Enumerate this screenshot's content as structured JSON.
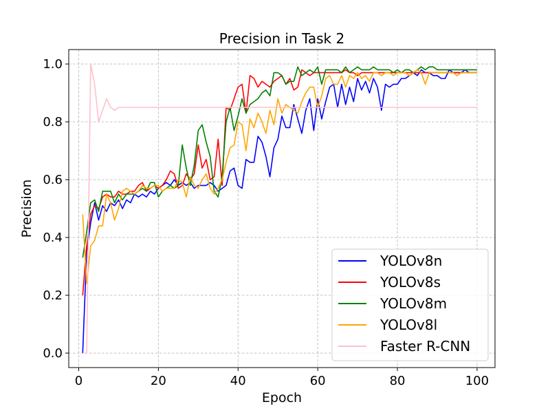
{
  "chart_data": {
    "type": "line",
    "title": "Precision in Task 2",
    "xlabel": "Epoch",
    "ylabel": "Precision",
    "xlim": [
      -2.5,
      104.5
    ],
    "ylim": [
      -0.05,
      1.05
    ],
    "xticks": [
      0,
      20,
      40,
      60,
      80,
      100
    ],
    "yticks": [
      0.0,
      0.2,
      0.4,
      0.6,
      0.8,
      1.0
    ],
    "xtick_labels": [
      "0",
      "20",
      "40",
      "60",
      "80",
      "100"
    ],
    "ytick_labels": [
      "0.0",
      "0.2",
      "0.4",
      "0.6",
      "0.8",
      "1.0"
    ],
    "grid": true,
    "legend_position": "lower-right",
    "series": [
      {
        "name": "YOLOv8n",
        "color": "#0000ff",
        "x": [
          1,
          2,
          3,
          4,
          5,
          6,
          7,
          8,
          9,
          10,
          11,
          12,
          13,
          14,
          15,
          16,
          17,
          18,
          19,
          20,
          21,
          22,
          23,
          24,
          25,
          26,
          27,
          28,
          29,
          30,
          31,
          32,
          33,
          34,
          35,
          36,
          37,
          38,
          39,
          40,
          41,
          42,
          43,
          44,
          45,
          46,
          47,
          48,
          49,
          50,
          51,
          52,
          53,
          54,
          55,
          56,
          57,
          58,
          59,
          60,
          61,
          62,
          63,
          64,
          65,
          66,
          67,
          68,
          69,
          70,
          71,
          72,
          73,
          74,
          75,
          76,
          77,
          78,
          79,
          80,
          81,
          82,
          83,
          84,
          85,
          86,
          87,
          88,
          89,
          90,
          91,
          92,
          93,
          94,
          95,
          96,
          97,
          98,
          99,
          100
        ],
        "values": [
          0.0,
          0.35,
          0.45,
          0.52,
          0.46,
          0.51,
          0.49,
          0.52,
          0.51,
          0.53,
          0.5,
          0.53,
          0.52,
          0.55,
          0.54,
          0.55,
          0.54,
          0.56,
          0.55,
          0.57,
          0.58,
          0.59,
          0.58,
          0.6,
          0.58,
          0.59,
          0.58,
          0.59,
          0.57,
          0.58,
          0.58,
          0.58,
          0.59,
          0.58,
          0.56,
          0.57,
          0.58,
          0.63,
          0.64,
          0.58,
          0.57,
          0.67,
          0.66,
          0.66,
          0.75,
          0.73,
          0.68,
          0.61,
          0.71,
          0.74,
          0.82,
          0.78,
          0.78,
          0.86,
          0.81,
          0.76,
          0.84,
          0.88,
          0.77,
          0.88,
          0.81,
          0.87,
          0.92,
          0.93,
          0.85,
          0.93,
          0.86,
          0.92,
          0.87,
          0.95,
          0.91,
          0.94,
          0.9,
          0.95,
          0.92,
          0.84,
          0.93,
          0.92,
          0.93,
          0.93,
          0.95,
          0.95,
          0.96,
          0.97,
          0.96,
          0.98,
          0.97,
          0.97,
          0.96,
          0.96,
          0.95,
          0.95,
          0.98,
          0.97,
          0.97,
          0.97,
          0.98,
          0.97,
          0.97,
          0.97
        ]
      },
      {
        "name": "YOLOv8s",
        "color": "#ff0000",
        "x": [
          1,
          2,
          3,
          4,
          5,
          6,
          7,
          8,
          9,
          10,
          11,
          12,
          13,
          14,
          15,
          16,
          17,
          18,
          19,
          20,
          21,
          22,
          23,
          24,
          25,
          26,
          27,
          28,
          29,
          30,
          31,
          32,
          33,
          34,
          35,
          36,
          37,
          38,
          39,
          40,
          41,
          42,
          43,
          44,
          45,
          46,
          47,
          48,
          49,
          50,
          51,
          52,
          53,
          54,
          55,
          56,
          57,
          58,
          59,
          60,
          61,
          62,
          63,
          64,
          65,
          66,
          67,
          68,
          69,
          70,
          71,
          72,
          73,
          74,
          75,
          76,
          77,
          78,
          79,
          80,
          81,
          82,
          83,
          84,
          85,
          86,
          87,
          88,
          89,
          90,
          91,
          92,
          93,
          94,
          95,
          96,
          97,
          98,
          99,
          100
        ],
        "values": [
          0.2,
          0.37,
          0.48,
          0.51,
          0.5,
          0.54,
          0.55,
          0.54,
          0.54,
          0.56,
          0.55,
          0.55,
          0.56,
          0.56,
          0.58,
          0.59,
          0.56,
          0.57,
          0.58,
          0.57,
          0.58,
          0.6,
          0.63,
          0.62,
          0.57,
          0.58,
          0.62,
          0.6,
          0.62,
          0.72,
          0.64,
          0.67,
          0.6,
          0.61,
          0.74,
          0.58,
          0.85,
          0.84,
          0.88,
          0.92,
          0.93,
          0.83,
          0.96,
          0.95,
          0.92,
          0.94,
          0.93,
          0.92,
          0.94,
          0.95,
          0.96,
          0.93,
          0.95,
          0.91,
          0.92,
          0.98,
          0.97,
          0.96,
          0.97,
          0.97,
          0.97,
          0.97,
          0.97,
          0.97,
          0.97,
          0.97,
          0.98,
          0.97,
          0.97,
          0.96,
          0.97,
          0.97,
          0.97,
          0.97,
          0.97,
          0.97,
          0.97,
          0.97,
          0.97,
          0.97,
          0.97,
          0.97,
          0.97,
          0.97,
          0.97,
          0.97,
          0.97,
          0.97,
          0.97,
          0.97,
          0.97,
          0.97,
          0.97,
          0.97,
          0.97,
          0.97,
          0.97,
          0.97,
          0.97,
          0.97
        ]
      },
      {
        "name": "YOLOv8m",
        "color": "#008000",
        "x": [
          1,
          2,
          3,
          4,
          5,
          6,
          7,
          8,
          9,
          10,
          11,
          12,
          13,
          14,
          15,
          16,
          17,
          18,
          19,
          20,
          21,
          22,
          23,
          24,
          25,
          26,
          27,
          28,
          29,
          30,
          31,
          32,
          33,
          34,
          35,
          36,
          37,
          38,
          39,
          40,
          41,
          42,
          43,
          44,
          45,
          46,
          47,
          48,
          49,
          50,
          51,
          52,
          53,
          54,
          55,
          56,
          57,
          58,
          59,
          60,
          61,
          62,
          63,
          64,
          65,
          66,
          67,
          68,
          69,
          70,
          71,
          72,
          73,
          74,
          75,
          76,
          77,
          78,
          79,
          80,
          81,
          82,
          83,
          84,
          85,
          86,
          87,
          88,
          89,
          90,
          91,
          92,
          93,
          94,
          95,
          96,
          97,
          98,
          99,
          100
        ],
        "values": [
          0.33,
          0.42,
          0.52,
          0.53,
          0.49,
          0.56,
          0.56,
          0.56,
          0.52,
          0.55,
          0.53,
          0.55,
          0.55,
          0.55,
          0.56,
          0.57,
          0.56,
          0.59,
          0.59,
          0.54,
          0.56,
          0.57,
          0.58,
          0.57,
          0.58,
          0.72,
          0.64,
          0.58,
          0.65,
          0.77,
          0.79,
          0.73,
          0.68,
          0.56,
          0.54,
          0.61,
          0.8,
          0.85,
          0.77,
          0.82,
          0.88,
          0.83,
          0.86,
          0.87,
          0.88,
          0.9,
          0.91,
          0.89,
          0.97,
          0.97,
          0.96,
          0.93,
          0.94,
          0.94,
          0.99,
          0.96,
          0.97,
          0.98,
          0.97,
          0.99,
          0.93,
          0.98,
          0.98,
          0.98,
          0.98,
          0.97,
          0.99,
          0.97,
          0.98,
          0.99,
          0.98,
          0.98,
          0.98,
          0.99,
          0.98,
          0.98,
          0.98,
          0.98,
          0.97,
          0.98,
          0.97,
          0.98,
          0.98,
          0.97,
          0.98,
          0.99,
          0.98,
          0.99,
          0.99,
          0.98,
          0.98,
          0.98,
          0.98,
          0.98,
          0.98,
          0.98,
          0.98,
          0.98,
          0.98,
          0.98
        ]
      },
      {
        "name": "YOLOv8l",
        "color": "#ffa500",
        "x": [
          1,
          2,
          3,
          4,
          5,
          6,
          7,
          8,
          9,
          10,
          11,
          12,
          13,
          14,
          15,
          16,
          17,
          18,
          19,
          20,
          21,
          22,
          23,
          24,
          25,
          26,
          27,
          28,
          29,
          30,
          31,
          32,
          33,
          34,
          35,
          36,
          37,
          38,
          39,
          40,
          41,
          42,
          43,
          44,
          45,
          46,
          47,
          48,
          49,
          50,
          51,
          52,
          53,
          54,
          55,
          56,
          57,
          58,
          59,
          60,
          61,
          62,
          63,
          64,
          65,
          66,
          67,
          68,
          69,
          70,
          71,
          72,
          73,
          74,
          75,
          76,
          77,
          78,
          79,
          80,
          81,
          82,
          83,
          84,
          85,
          86,
          87,
          88,
          89,
          90,
          91,
          92,
          93,
          94,
          95,
          96,
          97,
          98,
          99,
          100
        ],
        "values": [
          0.48,
          0.24,
          0.37,
          0.39,
          0.44,
          0.44,
          0.55,
          0.52,
          0.46,
          0.5,
          0.56,
          0.57,
          0.56,
          0.55,
          0.56,
          0.58,
          0.57,
          0.57,
          0.58,
          0.58,
          0.56,
          0.57,
          0.57,
          0.57,
          0.6,
          0.59,
          0.54,
          0.61,
          0.58,
          0.57,
          0.6,
          0.62,
          0.57,
          0.55,
          0.57,
          0.6,
          0.66,
          0.71,
          0.72,
          0.8,
          0.79,
          0.7,
          0.81,
          0.78,
          0.83,
          0.8,
          0.76,
          0.84,
          0.79,
          0.88,
          0.83,
          0.86,
          0.85,
          0.84,
          0.83,
          0.87,
          0.9,
          0.92,
          0.92,
          0.85,
          0.89,
          0.95,
          0.96,
          0.93,
          0.93,
          0.96,
          0.92,
          0.96,
          0.95,
          0.97,
          0.95,
          0.96,
          0.94,
          0.97,
          0.97,
          0.96,
          0.97,
          0.97,
          0.96,
          0.97,
          0.97,
          0.97,
          0.96,
          0.97,
          0.98,
          0.97,
          0.93,
          0.97,
          0.97,
          0.97,
          0.97,
          0.97,
          0.97,
          0.97,
          0.96,
          0.97,
          0.97,
          0.97,
          0.97,
          0.97
        ]
      },
      {
        "name": "Faster R-CNN",
        "color": "#ffc0cb",
        "x": [
          1,
          2,
          3,
          4,
          5,
          6,
          7,
          8,
          9,
          10,
          11,
          12,
          13,
          14,
          15,
          16,
          17,
          18,
          19,
          20,
          21,
          22,
          23,
          24,
          25,
          26,
          27,
          28,
          29,
          30,
          31,
          32,
          33,
          34,
          35,
          36,
          37,
          38,
          39,
          40,
          41,
          42,
          43,
          44,
          45,
          46,
          47,
          48,
          49,
          50,
          51,
          52,
          53,
          54,
          55,
          56,
          57,
          58,
          59,
          60,
          61,
          62,
          63,
          64,
          65,
          66,
          67,
          68,
          69,
          70,
          71,
          72,
          73,
          74,
          75,
          76,
          77,
          78,
          79,
          80,
          81,
          82,
          83,
          84,
          85,
          86,
          87,
          88,
          89,
          90,
          91,
          92,
          93,
          94,
          95,
          96,
          97,
          98,
          99,
          100
        ],
        "values": [
          0.0,
          0.0,
          1.0,
          0.93,
          0.8,
          0.84,
          0.88,
          0.85,
          0.84,
          0.85,
          0.85,
          0.85,
          0.85,
          0.85,
          0.85,
          0.85,
          0.85,
          0.85,
          0.85,
          0.85,
          0.85,
          0.85,
          0.85,
          0.85,
          0.85,
          0.85,
          0.85,
          0.85,
          0.85,
          0.85,
          0.85,
          0.85,
          0.85,
          0.85,
          0.85,
          0.85,
          0.85,
          0.85,
          0.85,
          0.85,
          0.85,
          0.85,
          0.85,
          0.85,
          0.85,
          0.85,
          0.85,
          0.85,
          0.85,
          0.85,
          0.85,
          0.85,
          0.85,
          0.85,
          0.85,
          0.85,
          0.85,
          0.85,
          0.85,
          0.85,
          0.85,
          0.85,
          0.85,
          0.85,
          0.85,
          0.85,
          0.85,
          0.85,
          0.85,
          0.85,
          0.85,
          0.85,
          0.85,
          0.85,
          0.85,
          0.85,
          0.85,
          0.85,
          0.85,
          0.85,
          0.85,
          0.85,
          0.85,
          0.85,
          0.85,
          0.85,
          0.85,
          0.85,
          0.85,
          0.85,
          0.85,
          0.85,
          0.85,
          0.85,
          0.85,
          0.85,
          0.85,
          0.85,
          0.85,
          0.85
        ]
      }
    ]
  }
}
